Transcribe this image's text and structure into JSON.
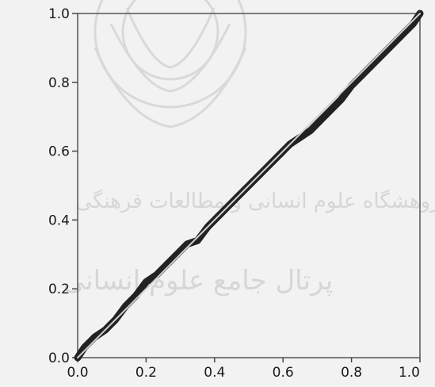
{
  "chart_data": {
    "type": "line",
    "title": "",
    "xlabel": "",
    "ylabel": "",
    "xlim": [
      0.0,
      1.0
    ],
    "ylim": [
      0.0,
      1.0
    ],
    "grid": false,
    "x_ticks": [
      "0.0",
      "0.2",
      "0.4",
      "0.6",
      "0.8",
      "1.0"
    ],
    "y_ticks": [
      "0.0",
      "0.2",
      "0.4",
      "0.6",
      "0.8",
      "1.0"
    ],
    "series": [
      {
        "color": "#222222",
        "x": [
          0.0,
          0.02,
          0.05,
          0.08,
          0.11,
          0.14,
          0.17,
          0.2,
          0.23,
          0.26,
          0.29,
          0.32,
          0.35,
          0.38,
          0.41,
          0.44,
          0.47,
          0.5,
          0.53,
          0.56,
          0.59,
          0.62,
          0.65,
          0.68,
          0.71,
          0.74,
          0.77,
          0.8,
          0.83,
          0.86,
          0.89,
          0.92,
          0.95,
          0.98,
          1.0
        ],
        "y": [
          0.0,
          0.03,
          0.06,
          0.08,
          0.11,
          0.15,
          0.18,
          0.22,
          0.24,
          0.27,
          0.3,
          0.33,
          0.34,
          0.38,
          0.41,
          0.44,
          0.47,
          0.5,
          0.53,
          0.56,
          0.59,
          0.62,
          0.64,
          0.66,
          0.69,
          0.72,
          0.75,
          0.79,
          0.82,
          0.85,
          0.88,
          0.91,
          0.94,
          0.97,
          1.0
        ]
      },
      {
        "color": "#cfcfcf",
        "x": [
          0.0,
          1.0
        ],
        "y": [
          0.0,
          1.0
        ]
      }
    ]
  },
  "watermark": {
    "line1": "پژوهشگاه علوم انسانی و مطالعات فرهنگی",
    "line2": "پرتال جامع علوم انسانی"
  }
}
